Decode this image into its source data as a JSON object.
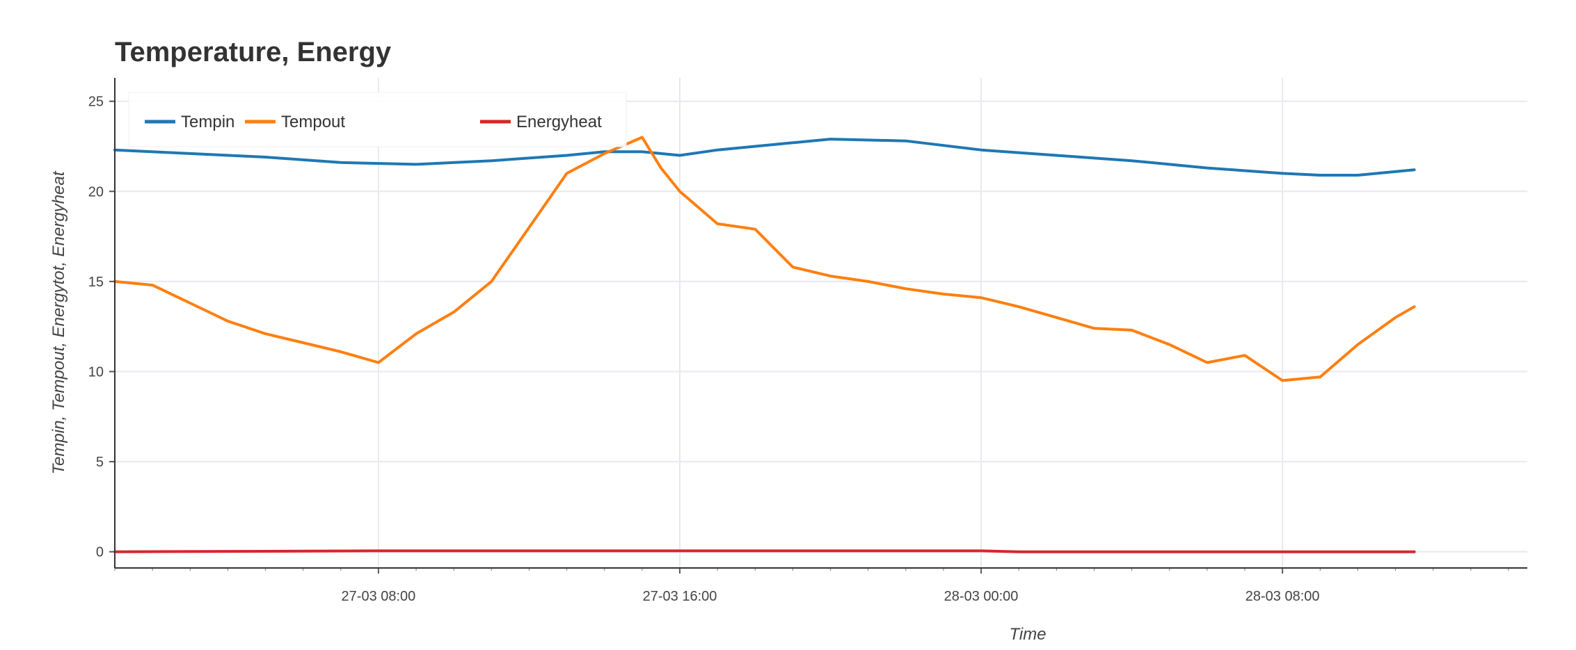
{
  "chart_data": {
    "type": "line",
    "title": "Temperature, Energy",
    "xlabel": "Time",
    "ylabel": "Tempin, Tempout, Energytot, Energyheat",
    "x_axis_type": "datetime",
    "x_range": [
      "27-03 01:00",
      "28-03 14:30"
    ],
    "ylim": [
      -0.9,
      26.3
    ],
    "y_ticks": [
      0,
      5,
      10,
      15,
      20,
      25
    ],
    "x_ticks": [
      {
        "t": "27-03 08:00",
        "label": "27-03 08:00"
      },
      {
        "t": "27-03 16:00",
        "label": "27-03 16:00"
      },
      {
        "t": "28-03 00:00",
        "label": "28-03 00:00"
      },
      {
        "t": "28-03 08:00",
        "label": "28-03 08:00"
      }
    ],
    "grid": true,
    "legend_position": "top-left",
    "series": [
      {
        "name": "Tempin",
        "color": "#1f77b4",
        "points": [
          [
            "27-03 01:00",
            22.3
          ],
          [
            "27-03 03:00",
            22.1
          ],
          [
            "27-03 05:00",
            21.9
          ],
          [
            "27-03 07:00",
            21.6
          ],
          [
            "27-03 09:00",
            21.5
          ],
          [
            "27-03 11:00",
            21.7
          ],
          [
            "27-03 13:00",
            22.0
          ],
          [
            "27-03 14:00",
            22.2
          ],
          [
            "27-03 15:00",
            22.2
          ],
          [
            "27-03 16:00",
            22.0
          ],
          [
            "27-03 17:00",
            22.3
          ],
          [
            "27-03 19:00",
            22.7
          ],
          [
            "27-03 20:00",
            22.9
          ],
          [
            "27-03 22:00",
            22.8
          ],
          [
            "28-03 00:00",
            22.3
          ],
          [
            "28-03 02:00",
            22.0
          ],
          [
            "28-03 04:00",
            21.7
          ],
          [
            "28-03 06:00",
            21.3
          ],
          [
            "28-03 08:00",
            21.0
          ],
          [
            "28-03 09:00",
            20.9
          ],
          [
            "28-03 10:00",
            20.9
          ],
          [
            "28-03 11:30",
            21.2
          ]
        ]
      },
      {
        "name": "Tempout",
        "color": "#ff7f0e",
        "points": [
          [
            "27-03 01:00",
            15.0
          ],
          [
            "27-03 02:00",
            14.8
          ],
          [
            "27-03 03:00",
            13.8
          ],
          [
            "27-03 04:00",
            12.8
          ],
          [
            "27-03 05:00",
            12.1
          ],
          [
            "27-03 06:00",
            11.6
          ],
          [
            "27-03 07:00",
            11.1
          ],
          [
            "27-03 08:00",
            10.5
          ],
          [
            "27-03 09:00",
            12.1
          ],
          [
            "27-03 10:00",
            13.3
          ],
          [
            "27-03 11:00",
            15.0
          ],
          [
            "27-03 12:00",
            18.0
          ],
          [
            "27-03 13:00",
            21.0
          ],
          [
            "27-03 14:00",
            22.1
          ],
          [
            "27-03 15:00",
            23.0
          ],
          [
            "27-03 15:30",
            21.3
          ],
          [
            "27-03 16:00",
            20.0
          ],
          [
            "27-03 17:00",
            18.2
          ],
          [
            "27-03 18:00",
            17.9
          ],
          [
            "27-03 19:00",
            15.8
          ],
          [
            "27-03 20:00",
            15.3
          ],
          [
            "27-03 21:00",
            15.0
          ],
          [
            "27-03 22:00",
            14.6
          ],
          [
            "27-03 23:00",
            14.3
          ],
          [
            "28-03 00:00",
            14.1
          ],
          [
            "28-03 01:00",
            13.6
          ],
          [
            "28-03 02:00",
            13.0
          ],
          [
            "28-03 03:00",
            12.4
          ],
          [
            "28-03 04:00",
            12.3
          ],
          [
            "28-03 05:00",
            11.5
          ],
          [
            "28-03 06:00",
            10.5
          ],
          [
            "28-03 07:00",
            10.9
          ],
          [
            "28-03 08:00",
            9.5
          ],
          [
            "28-03 09:00",
            9.7
          ],
          [
            "28-03 10:00",
            11.5
          ],
          [
            "28-03 11:00",
            13.0
          ],
          [
            "28-03 11:30",
            13.6
          ]
        ]
      },
      {
        "name": "Energyheat",
        "color": "#d62728",
        "points": [
          [
            "27-03 01:00",
            0.0
          ],
          [
            "27-03 08:00",
            0.05
          ],
          [
            "27-03 16:00",
            0.05
          ],
          [
            "28-03 00:00",
            0.05
          ],
          [
            "28-03 01:00",
            0.0
          ],
          [
            "28-03 08:00",
            0.0
          ],
          [
            "28-03 11:30",
            0.0
          ]
        ]
      }
    ]
  }
}
